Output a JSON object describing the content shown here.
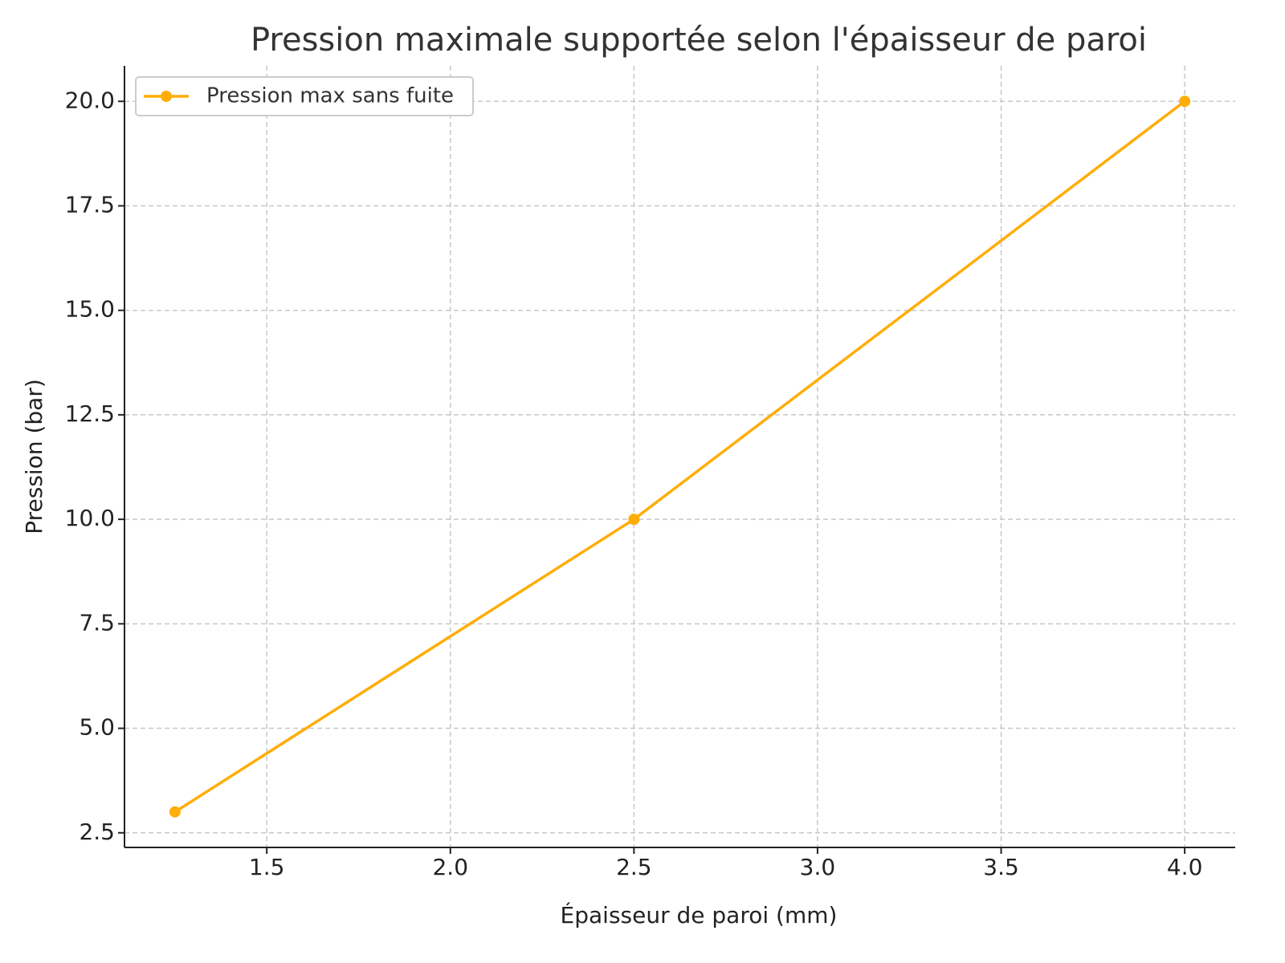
{
  "chart_data": {
    "type": "line",
    "title": "Pression maximale supportée selon l'épaisseur de paroi",
    "x_label": "Épaisseur de paroi (mm)",
    "y_label": "Pression (bar)",
    "x": [
      1.25,
      2.5,
      4.0
    ],
    "series": [
      {
        "name": "Pression max sans fuite",
        "color": "#ffad0a",
        "values": [
          3,
          10,
          20
        ]
      }
    ],
    "xlim": [
      1.1125,
      4.1375
    ],
    "ylim": [
      2.15,
      20.85
    ],
    "xticks": [
      1.5,
      {
        "value": 2,
        "label": "2.0"
      },
      2.5,
      {
        "value": 3,
        "label": "3.0"
      },
      3.5,
      {
        "value": 4,
        "label": "4.0"
      }
    ],
    "yticks": [
      2.5,
      {
        "value": 5,
        "label": "5.0"
      },
      7.5,
      {
        "value": 10,
        "label": "10.0"
      },
      12.5,
      {
        "value": 15,
        "label": "15.0"
      },
      17.5,
      {
        "value": 20,
        "label": "20.0"
      }
    ],
    "grid": true,
    "legend": "upper-left"
  }
}
